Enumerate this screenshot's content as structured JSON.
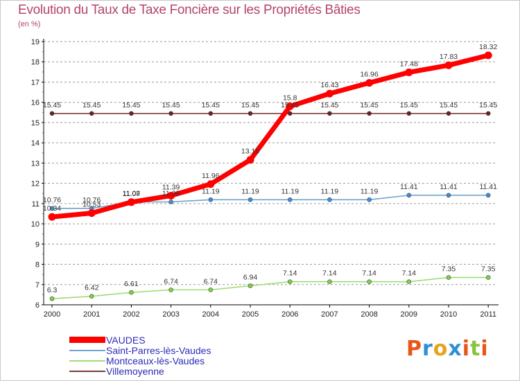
{
  "header": {
    "title": "Evolution du Taux de Taxe Foncière sur les Propriétés Bâties",
    "unit": "(en %)"
  },
  "colors": {
    "title": "#b5446c",
    "legend_text": "#2a2ab8",
    "grid": "#9a9a9a",
    "axis": "#000000"
  },
  "chart_data": {
    "type": "line",
    "title": "Evolution du Taux de Taxe Foncière sur les Propriétés Bâties",
    "ylabel": "(en %)",
    "xlabel": "",
    "categories": [
      "2000",
      "2001",
      "2002",
      "2003",
      "2004",
      "2005",
      "2006",
      "2007",
      "2008",
      "2009",
      "2010",
      "2011"
    ],
    "ylim": [
      6,
      19
    ],
    "yticks": [
      6,
      7,
      8,
      9,
      10,
      11,
      12,
      13,
      14,
      15,
      16,
      17,
      18,
      19
    ],
    "grid": "horizontal dashed",
    "legend_position": "bottom-left",
    "series": [
      {
        "name": "VAUDES",
        "color": "#ff0000",
        "marker_color": "#ff0000",
        "line_weight": "thick",
        "values": [
          10.34,
          10.53,
          11.07,
          11.39,
          11.96,
          13.16,
          15.8,
          16.43,
          16.96,
          17.48,
          17.83,
          18.32
        ],
        "labels": [
          "10.34",
          "10.53",
          "11.07",
          "11.39",
          "11.96",
          "13.16",
          "15.8",
          "16.43",
          "16.96",
          "17.48",
          "17.83",
          "18.32"
        ]
      },
      {
        "name": "Saint-Parres-lès-Vaudes",
        "color": "#6ea3cd",
        "marker_color": "#3f8ed8",
        "line_weight": "thin",
        "values": [
          10.76,
          10.76,
          11.08,
          11.08,
          11.19,
          11.19,
          11.19,
          11.19,
          11.19,
          11.41,
          11.41,
          11.41
        ],
        "labels": [
          "10.76",
          "10.76",
          "11.08",
          "11.08",
          "11.19",
          "11.19",
          "11.19",
          "11.19",
          "11.19",
          "11.41",
          "11.41",
          "11.41"
        ]
      },
      {
        "name": "Montceaux-lès-Vaudes",
        "color": "#9fdc74",
        "marker_color": "#7cd444",
        "line_weight": "thin",
        "values": [
          6.3,
          6.42,
          6.61,
          6.74,
          6.74,
          6.94,
          7.14,
          7.14,
          7.14,
          7.14,
          7.35,
          7.35
        ],
        "labels": [
          "6.3",
          "6.42",
          "6.61",
          "6.74",
          "6.74",
          "6.94",
          "7.14",
          "7.14",
          "7.14",
          "7.14",
          "7.35",
          "7.35"
        ]
      },
      {
        "name": "Villemoyenne",
        "color": "#7a3a3a",
        "marker_color": "#6b2020",
        "line_weight": "thin",
        "values": [
          15.45,
          15.45,
          15.45,
          15.45,
          15.45,
          15.45,
          15.45,
          15.45,
          15.45,
          15.45,
          15.45,
          15.45
        ],
        "labels": [
          "15.45",
          "15.45",
          "15.45",
          "15.45",
          "15.45",
          "15.45",
          "15.45",
          "15.45",
          "15.45",
          "15.45",
          "15.45",
          "15.45"
        ]
      }
    ]
  },
  "legend": [
    {
      "label": "VAUDES",
      "color": "#ff0000"
    },
    {
      "label": "Saint-Parres-lès-Vaudes",
      "color": "#6ea3cd"
    },
    {
      "label": "Montceaux-lès-Vaudes",
      "color": "#9fdc74"
    },
    {
      "label": "Villemoyenne",
      "color": "#7a3a3a"
    }
  ],
  "logo": {
    "text": "Proxiti",
    "letters": [
      "P",
      "r",
      "o",
      "x",
      "i",
      "t",
      "i"
    ],
    "letter_colors": [
      "#e8561c",
      "#2f8fd6",
      "#e8a21c",
      "#2f8fd6",
      "#e8561c",
      "#8ac43f",
      "#e8561c"
    ]
  }
}
